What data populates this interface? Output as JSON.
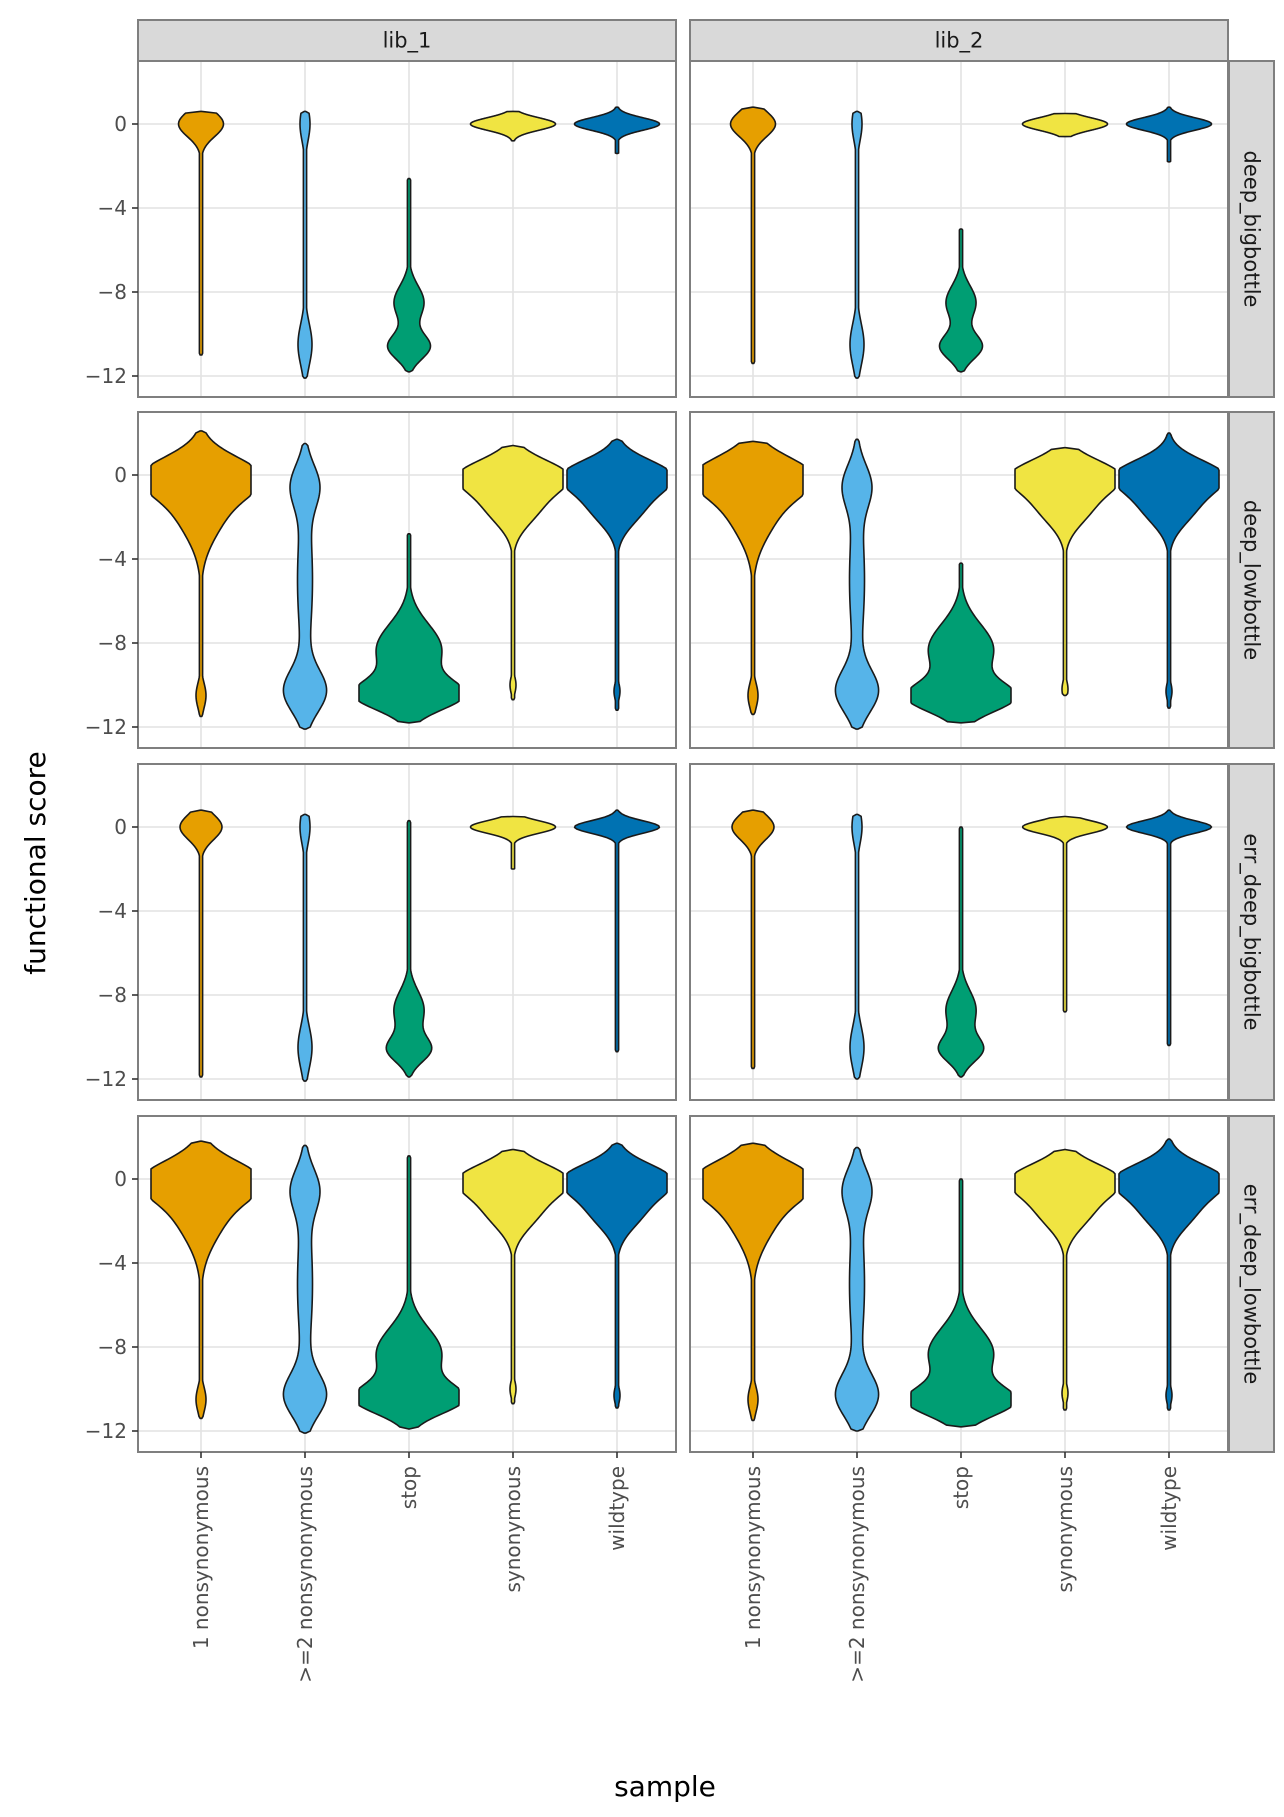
{
  "chart_data": {
    "type": "violin",
    "xlabel": "sample",
    "ylabel": "functional score",
    "categories": [
      "1 nonsynonymous",
      ">=2 nonsynonymous",
      "stop",
      "synonymous",
      "wildtype"
    ],
    "category_colors": {
      "1 nonsynonymous": "#E69F00",
      ">=2 nonsynonymous": "#56B4E9",
      "stop": "#009E73",
      "synonymous": "#F0E442",
      "wildtype": "#0072B2"
    },
    "col_facets": [
      "lib_1",
      "lib_2"
    ],
    "row_facets": [
      "deep_bigbottle",
      "deep_lowbottle",
      "err_deep_bigbottle",
      "err_deep_lowbottle"
    ],
    "ylim": [
      -13,
      3
    ],
    "yticks": [
      0,
      -4,
      -8,
      -12
    ],
    "ytick_labels": [
      "0",
      "−4",
      "−8",
      "−12"
    ],
    "grid": true,
    "panels": [
      {
        "row": "deep_bigbottle",
        "col": "lib_1",
        "violins": [
          {
            "category": "1 nonsynonymous",
            "min": -11,
            "max": 0.6,
            "modes": [
              [
                0,
                0.45,
                0.6
              ]
            ]
          },
          {
            "category": ">=2 nonsynonymous",
            "min": -12.1,
            "max": 0.6,
            "modes": [
              [
                -10.5,
                0.14,
                1.0
              ],
              [
                0,
                0.1,
                0.8
              ]
            ]
          },
          {
            "category": "stop",
            "min": -11.8,
            "max": -2.6,
            "modes": [
              [
                -10.6,
                0.42,
                0.6
              ],
              [
                -8.5,
                0.3,
                0.8
              ]
            ]
          },
          {
            "category": "synonymous",
            "min": -0.8,
            "max": 0.6,
            "modes": [
              [
                0,
                0.85,
                0.3
              ]
            ]
          },
          {
            "category": "wildtype",
            "min": -1.4,
            "max": 0.8,
            "modes": [
              [
                0,
                0.85,
                0.3
              ]
            ]
          }
        ]
      },
      {
        "row": "deep_bigbottle",
        "col": "lib_2",
        "violins": [
          {
            "category": "1 nonsynonymous",
            "min": -11.4,
            "max": 0.8,
            "modes": [
              [
                0,
                0.45,
                0.6
              ]
            ]
          },
          {
            "category": ">=2 nonsynonymous",
            "min": -12.1,
            "max": 0.6,
            "modes": [
              [
                -10.5,
                0.14,
                1.0
              ],
              [
                0,
                0.1,
                0.8
              ]
            ]
          },
          {
            "category": "stop",
            "min": -11.8,
            "max": -5,
            "modes": [
              [
                -10.6,
                0.42,
                0.6
              ],
              [
                -8.5,
                0.3,
                0.8
              ]
            ]
          },
          {
            "category": "synonymous",
            "min": -0.6,
            "max": 0.5,
            "modes": [
              [
                0,
                0.85,
                0.3
              ]
            ]
          },
          {
            "category": "wildtype",
            "min": -1.8,
            "max": 0.8,
            "modes": [
              [
                0,
                0.85,
                0.3
              ]
            ]
          }
        ]
      },
      {
        "row": "deep_lowbottle",
        "col": "lib_1",
        "violins": [
          {
            "category": "1 nonsynonymous",
            "min": -11.5,
            "max": 2.1,
            "modes": [
              [
                0,
                0.95,
                0.9
              ],
              [
                -1.5,
                0.5,
                1.4
              ],
              [
                -10.5,
                0.1,
                0.6
              ]
            ]
          },
          {
            "category": ">=2 nonsynonymous",
            "min": -12.1,
            "max": 1.5,
            "modes": [
              [
                -10.3,
                0.4,
                1.0
              ],
              [
                -0.5,
                0.25,
                1.0
              ],
              [
                -5,
                0.15,
                3
              ]
            ]
          },
          {
            "category": "stop",
            "min": -11.8,
            "max": -2.8,
            "modes": [
              [
                -10.5,
                1.0,
                0.7
              ],
              [
                -8.3,
                0.65,
                1.2
              ]
            ]
          },
          {
            "category": "synonymous",
            "min": -10.7,
            "max": 1.4,
            "modes": [
              [
                0,
                1.0,
                0.75
              ],
              [
                -1.5,
                0.5,
                0.9
              ],
              [
                -10,
                0.06,
                0.4
              ]
            ]
          },
          {
            "category": "wildtype",
            "min": -11.2,
            "max": 1.7,
            "modes": [
              [
                0,
                1.0,
                0.75
              ],
              [
                -1.5,
                0.5,
                0.9
              ],
              [
                -10.3,
                0.06,
                0.4
              ]
            ]
          }
        ]
      },
      {
        "row": "deep_lowbottle",
        "col": "lib_2",
        "violins": [
          {
            "category": "1 nonsynonymous",
            "min": -11.4,
            "max": 1.6,
            "modes": [
              [
                0,
                0.95,
                0.9
              ],
              [
                -1.5,
                0.5,
                1.4
              ],
              [
                -10.5,
                0.1,
                0.6
              ]
            ]
          },
          {
            "category": ">=2 nonsynonymous",
            "min": -12.1,
            "max": 1.7,
            "modes": [
              [
                -10.3,
                0.4,
                1.0
              ],
              [
                -0.5,
                0.25,
                1.0
              ],
              [
                -5,
                0.15,
                3
              ]
            ]
          },
          {
            "category": "stop",
            "min": -11.8,
            "max": -4.2,
            "modes": [
              [
                -10.6,
                1.0,
                0.7
              ],
              [
                -8.3,
                0.65,
                1.2
              ]
            ]
          },
          {
            "category": "synonymous",
            "min": -10.5,
            "max": 1.3,
            "modes": [
              [
                0,
                1.0,
                0.75
              ],
              [
                -1.5,
                0.5,
                0.9
              ],
              [
                -10.2,
                0.06,
                0.4
              ]
            ]
          },
          {
            "category": "wildtype",
            "min": -11.1,
            "max": 2.0,
            "modes": [
              [
                0,
                1.0,
                0.75
              ],
              [
                -1.5,
                0.5,
                0.9
              ],
              [
                -10.3,
                0.06,
                0.4
              ]
            ]
          }
        ]
      },
      {
        "row": "err_deep_bigbottle",
        "col": "lib_1",
        "violins": [
          {
            "category": "1 nonsynonymous",
            "min": -11.9,
            "max": 0.8,
            "modes": [
              [
                0,
                0.42,
                0.6
              ]
            ]
          },
          {
            "category": ">=2 nonsynonymous",
            "min": -12.1,
            "max": 0.6,
            "modes": [
              [
                -10.5,
                0.14,
                1.0
              ],
              [
                0,
                0.1,
                0.8
              ]
            ]
          },
          {
            "category": "stop",
            "min": -11.9,
            "max": 0.3,
            "modes": [
              [
                -10.6,
                0.42,
                0.6
              ],
              [
                -8.7,
                0.3,
                0.9
              ]
            ]
          },
          {
            "category": "synonymous",
            "min": -2.0,
            "max": 0.5,
            "modes": [
              [
                0,
                0.85,
                0.3
              ]
            ]
          },
          {
            "category": "wildtype",
            "min": -10.7,
            "max": 0.8,
            "modes": [
              [
                0,
                0.85,
                0.3
              ]
            ]
          }
        ]
      },
      {
        "row": "err_deep_bigbottle",
        "col": "lib_2",
        "violins": [
          {
            "category": "1 nonsynonymous",
            "min": -11.5,
            "max": 0.8,
            "modes": [
              [
                0,
                0.42,
                0.6
              ]
            ]
          },
          {
            "category": ">=2 nonsynonymous",
            "min": -12.0,
            "max": 0.6,
            "modes": [
              [
                -10.5,
                0.14,
                1.0
              ],
              [
                0,
                0.1,
                0.8
              ]
            ]
          },
          {
            "category": "stop",
            "min": -11.9,
            "max": 0.0,
            "modes": [
              [
                -10.6,
                0.42,
                0.6
              ],
              [
                -8.7,
                0.3,
                0.9
              ]
            ]
          },
          {
            "category": "synonymous",
            "min": -8.8,
            "max": 0.5,
            "modes": [
              [
                0,
                0.85,
                0.3
              ]
            ]
          },
          {
            "category": "wildtype",
            "min": -10.4,
            "max": 0.8,
            "modes": [
              [
                0,
                0.85,
                0.3
              ]
            ]
          }
        ]
      },
      {
        "row": "err_deep_lowbottle",
        "col": "lib_1",
        "violins": [
          {
            "category": "1 nonsynonymous",
            "min": -11.4,
            "max": 1.8,
            "modes": [
              [
                0,
                0.95,
                0.9
              ],
              [
                -1.5,
                0.5,
                1.4
              ],
              [
                -10.5,
                0.1,
                0.6
              ]
            ]
          },
          {
            "category": ">=2 nonsynonymous",
            "min": -12.1,
            "max": 1.6,
            "modes": [
              [
                -10.3,
                0.4,
                1.0
              ],
              [
                -0.5,
                0.25,
                1.0
              ],
              [
                -5,
                0.15,
                3
              ]
            ]
          },
          {
            "category": "stop",
            "min": -11.9,
            "max": 1.1,
            "modes": [
              [
                -10.5,
                1.0,
                0.7
              ],
              [
                -8.3,
                0.65,
                1.2
              ]
            ]
          },
          {
            "category": "synonymous",
            "min": -10.7,
            "max": 1.4,
            "modes": [
              [
                0,
                1.0,
                0.75
              ],
              [
                -1.5,
                0.5,
                0.9
              ],
              [
                -10,
                0.06,
                0.4
              ]
            ]
          },
          {
            "category": "wildtype",
            "min": -10.9,
            "max": 1.7,
            "modes": [
              [
                0,
                1.0,
                0.75
              ],
              [
                -1.5,
                0.5,
                0.9
              ],
              [
                -10.3,
                0.06,
                0.4
              ]
            ]
          }
        ]
      },
      {
        "row": "err_deep_lowbottle",
        "col": "lib_2",
        "violins": [
          {
            "category": "1 nonsynonymous",
            "min": -11.5,
            "max": 1.7,
            "modes": [
              [
                0,
                0.95,
                0.9
              ],
              [
                -1.5,
                0.5,
                1.4
              ],
              [
                -10.5,
                0.1,
                0.6
              ]
            ]
          },
          {
            "category": ">=2 nonsynonymous",
            "min": -12.0,
            "max": 1.5,
            "modes": [
              [
                -10.3,
                0.4,
                1.0
              ],
              [
                -0.5,
                0.25,
                1.0
              ],
              [
                -5,
                0.15,
                3
              ]
            ]
          },
          {
            "category": "stop",
            "min": -11.8,
            "max": 0.0,
            "modes": [
              [
                -10.6,
                1.0,
                0.7
              ],
              [
                -8.3,
                0.65,
                1.2
              ]
            ]
          },
          {
            "category": "synonymous",
            "min": -11.0,
            "max": 1.4,
            "modes": [
              [
                0,
                1.0,
                0.75
              ],
              [
                -1.5,
                0.5,
                0.9
              ],
              [
                -10.2,
                0.06,
                0.4
              ]
            ]
          },
          {
            "category": "wildtype",
            "min": -11.0,
            "max": 1.9,
            "modes": [
              [
                0,
                1.0,
                0.75
              ],
              [
                -1.5,
                0.5,
                0.9
              ],
              [
                -10.3,
                0.06,
                0.4
              ]
            ]
          }
        ]
      }
    ]
  }
}
